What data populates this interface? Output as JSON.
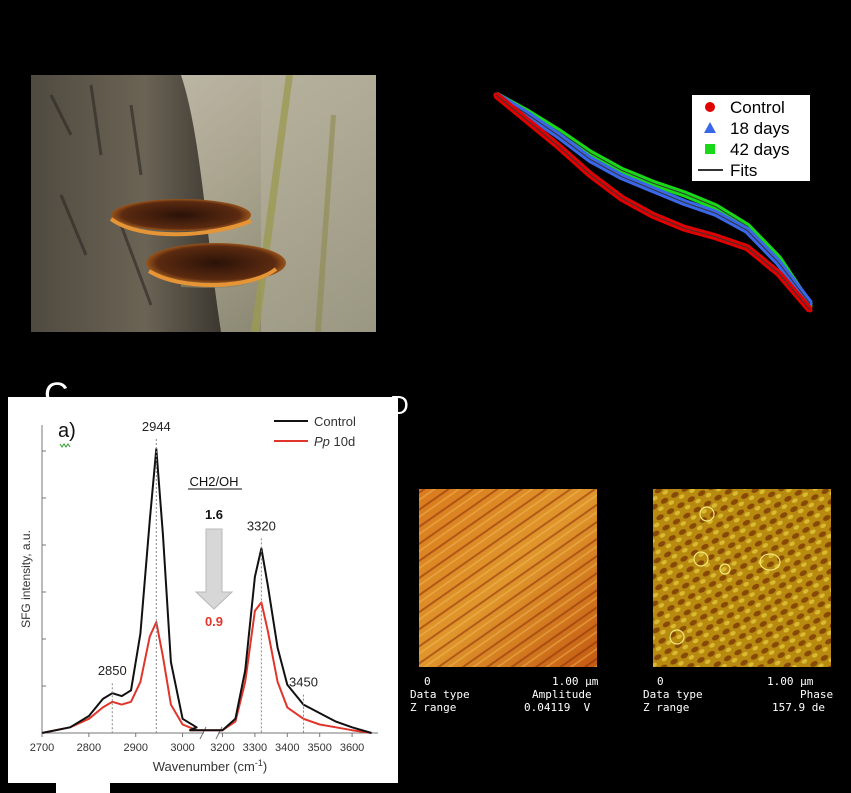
{
  "panel_c": {
    "letter": "C",
    "sub_label": "a)",
    "ratio_label": "CH2/OH",
    "ratio_before": "1.6",
    "ratio_after": "0.9"
  },
  "panel_d": {
    "letter": "D"
  },
  "afm": {
    "left": {
      "scale_zero": "0",
      "scale_max": "1.00 µm",
      "row1_label": "Data type",
      "row1_value": "Amplitude",
      "row2_label": "Z range",
      "row2_value": "0.04119  V"
    },
    "right": {
      "scale_zero": "0",
      "scale_max": "1.00 µm",
      "row1_label": "Data type",
      "row1_value": "Phase",
      "row2_label": "Z range",
      "row2_value": "157.9 de"
    }
  },
  "chart_data": [
    {
      "type": "line",
      "title": "",
      "xlabel": "",
      "ylabel": "",
      "legend": "top-right",
      "legend_entries": [
        {
          "name": "Control",
          "color": "#e00000",
          "marker": "circle"
        },
        {
          "name": "18 days",
          "color": "#3a66e8",
          "marker": "triangle"
        },
        {
          "name": "42 days",
          "color": "#18d818",
          "marker": "square"
        },
        {
          "name": "Fits",
          "color": "#333333",
          "marker": "line"
        }
      ],
      "x": [
        0,
        0.1,
        0.2,
        0.3,
        0.4,
        0.5,
        0.6,
        0.7,
        0.8,
        0.9,
        1.0
      ],
      "series": [
        {
          "name": "Control",
          "color": "#e00000",
          "values": [
            1.0,
            0.88,
            0.76,
            0.63,
            0.52,
            0.44,
            0.38,
            0.34,
            0.29,
            0.17,
            0.0
          ]
        },
        {
          "name": "18 days",
          "color": "#3a66e8",
          "values": [
            1.0,
            0.91,
            0.81,
            0.7,
            0.62,
            0.56,
            0.5,
            0.45,
            0.37,
            0.22,
            0.03
          ]
        },
        {
          "name": "42 days",
          "color": "#18d818",
          "values": [
            1.0,
            0.92,
            0.83,
            0.73,
            0.65,
            0.59,
            0.54,
            0.48,
            0.39,
            0.24,
            0.02
          ]
        }
      ]
    },
    {
      "type": "line",
      "title": "",
      "xlabel": "Wavenumber (cm-1)",
      "ylabel": "SFG intensity, a.u.",
      "legend": "top-right",
      "x_ticks": [
        "2700",
        "2800",
        "2900",
        "3000",
        "3200",
        "3300",
        "3400",
        "3500",
        "3600"
      ],
      "peak_labels": [
        "2944",
        "3320",
        "2850",
        "3450"
      ],
      "series": [
        {
          "name": "Control",
          "color": "#111111",
          "x": [
            2700,
            2760,
            2800,
            2830,
            2850,
            2870,
            2890,
            2910,
            2930,
            2944,
            2958,
            2975,
            3000,
            3030,
            3100,
            3200,
            3240,
            3270,
            3300,
            3320,
            3340,
            3370,
            3400,
            3450,
            3500,
            3550,
            3600,
            3660
          ],
          "values": [
            0.0,
            0.02,
            0.06,
            0.12,
            0.14,
            0.13,
            0.15,
            0.35,
            0.75,
            1.0,
            0.7,
            0.25,
            0.05,
            0.02,
            0.01,
            0.01,
            0.05,
            0.22,
            0.55,
            0.65,
            0.52,
            0.3,
            0.17,
            0.1,
            0.07,
            0.04,
            0.02,
            0.0
          ]
        },
        {
          "name": "Pp 10d",
          "color": "#e0352b",
          "x": [
            2700,
            2760,
            2800,
            2830,
            2850,
            2870,
            2890,
            2910,
            2930,
            2944,
            2958,
            2975,
            3000,
            3030,
            3100,
            3200,
            3240,
            3270,
            3300,
            3320,
            3340,
            3370,
            3400,
            3450,
            3500,
            3550,
            3600,
            3660
          ],
          "values": [
            0.0,
            0.02,
            0.05,
            0.09,
            0.11,
            0.1,
            0.11,
            0.18,
            0.34,
            0.39,
            0.27,
            0.1,
            0.03,
            0.01,
            0.01,
            0.01,
            0.04,
            0.18,
            0.43,
            0.46,
            0.36,
            0.18,
            0.09,
            0.05,
            0.03,
            0.02,
            0.01,
            0.0
          ]
        }
      ]
    }
  ]
}
